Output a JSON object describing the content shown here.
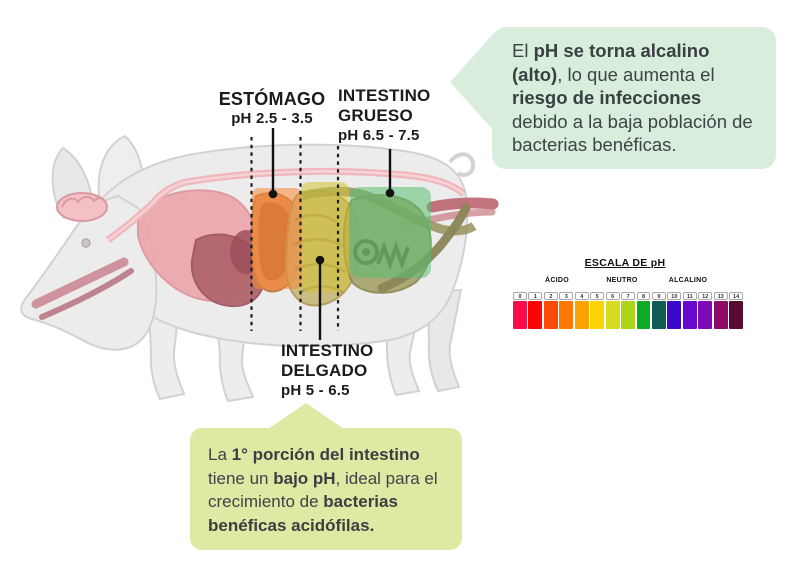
{
  "organ_labels": {
    "estomago": {
      "name": "ESTÓMAGO",
      "ph": "pH 2.5 - 3.5"
    },
    "intestino_grueso": {
      "line1": "INTESTINO",
      "line2": "GRUESO",
      "ph": "pH 6.5 - 7.5"
    },
    "intestino_delgado": {
      "line1": "INTESTINO",
      "line2": "DELGADO",
      "ph": "pH 5 - 6.5"
    }
  },
  "callouts": {
    "top": {
      "background": "#d9eddc",
      "segments": [
        {
          "t": "El ",
          "b": false
        },
        {
          "t": "pH se torna alcalino (alto)",
          "b": true
        },
        {
          "t": ", lo que aumenta el ",
          "b": false
        },
        {
          "t": "riesgo de infecciones",
          "b": true
        },
        {
          "t": " debido a la baja población de bacterias benéficas.",
          "b": false
        }
      ]
    },
    "bottom": {
      "background": "#dfe9a4",
      "segments": [
        {
          "t": "La ",
          "b": false
        },
        {
          "t": "1° porción del intestino",
          "b": true
        },
        {
          "t": " tiene un ",
          "b": false
        },
        {
          "t": "bajo pH",
          "b": true
        },
        {
          "t": ", ideal para el crecimiento de ",
          "b": false
        },
        {
          "t": "bacterias benéficas acidófilas.",
          "b": true
        }
      ]
    }
  },
  "ph_scale": {
    "title": "ESCALA DE pH",
    "zone_labels": [
      "ÁCIDO",
      "NEUTRO",
      "ALCALINO"
    ],
    "bars": [
      {
        "value": "0",
        "color": "#f90d4b"
      },
      {
        "value": "1",
        "color": "#fe0201"
      },
      {
        "value": "2",
        "color": "#fc4a02"
      },
      {
        "value": "3",
        "color": "#fc7a02"
      },
      {
        "value": "4",
        "color": "#fca202"
      },
      {
        "value": "5",
        "color": "#fcd402"
      },
      {
        "value": "6",
        "color": "#d8db1e"
      },
      {
        "value": "7",
        "color": "#aed31b"
      },
      {
        "value": "8",
        "color": "#0bab24"
      },
      {
        "value": "9",
        "color": "#115c55"
      },
      {
        "value": "10",
        "color": "#3a0ac8"
      },
      {
        "value": "11",
        "color": "#6609ce"
      },
      {
        "value": "12",
        "color": "#7f0ab5"
      },
      {
        "value": "13",
        "color": "#8d0a66"
      },
      {
        "value": "14",
        "color": "#570a32"
      }
    ]
  },
  "region_highlights": {
    "estomago": {
      "color": "#f5893b"
    },
    "intestino_delgado": {
      "color": "#d2c235"
    },
    "intestino_grueso": {
      "color": "#5abf72"
    }
  }
}
